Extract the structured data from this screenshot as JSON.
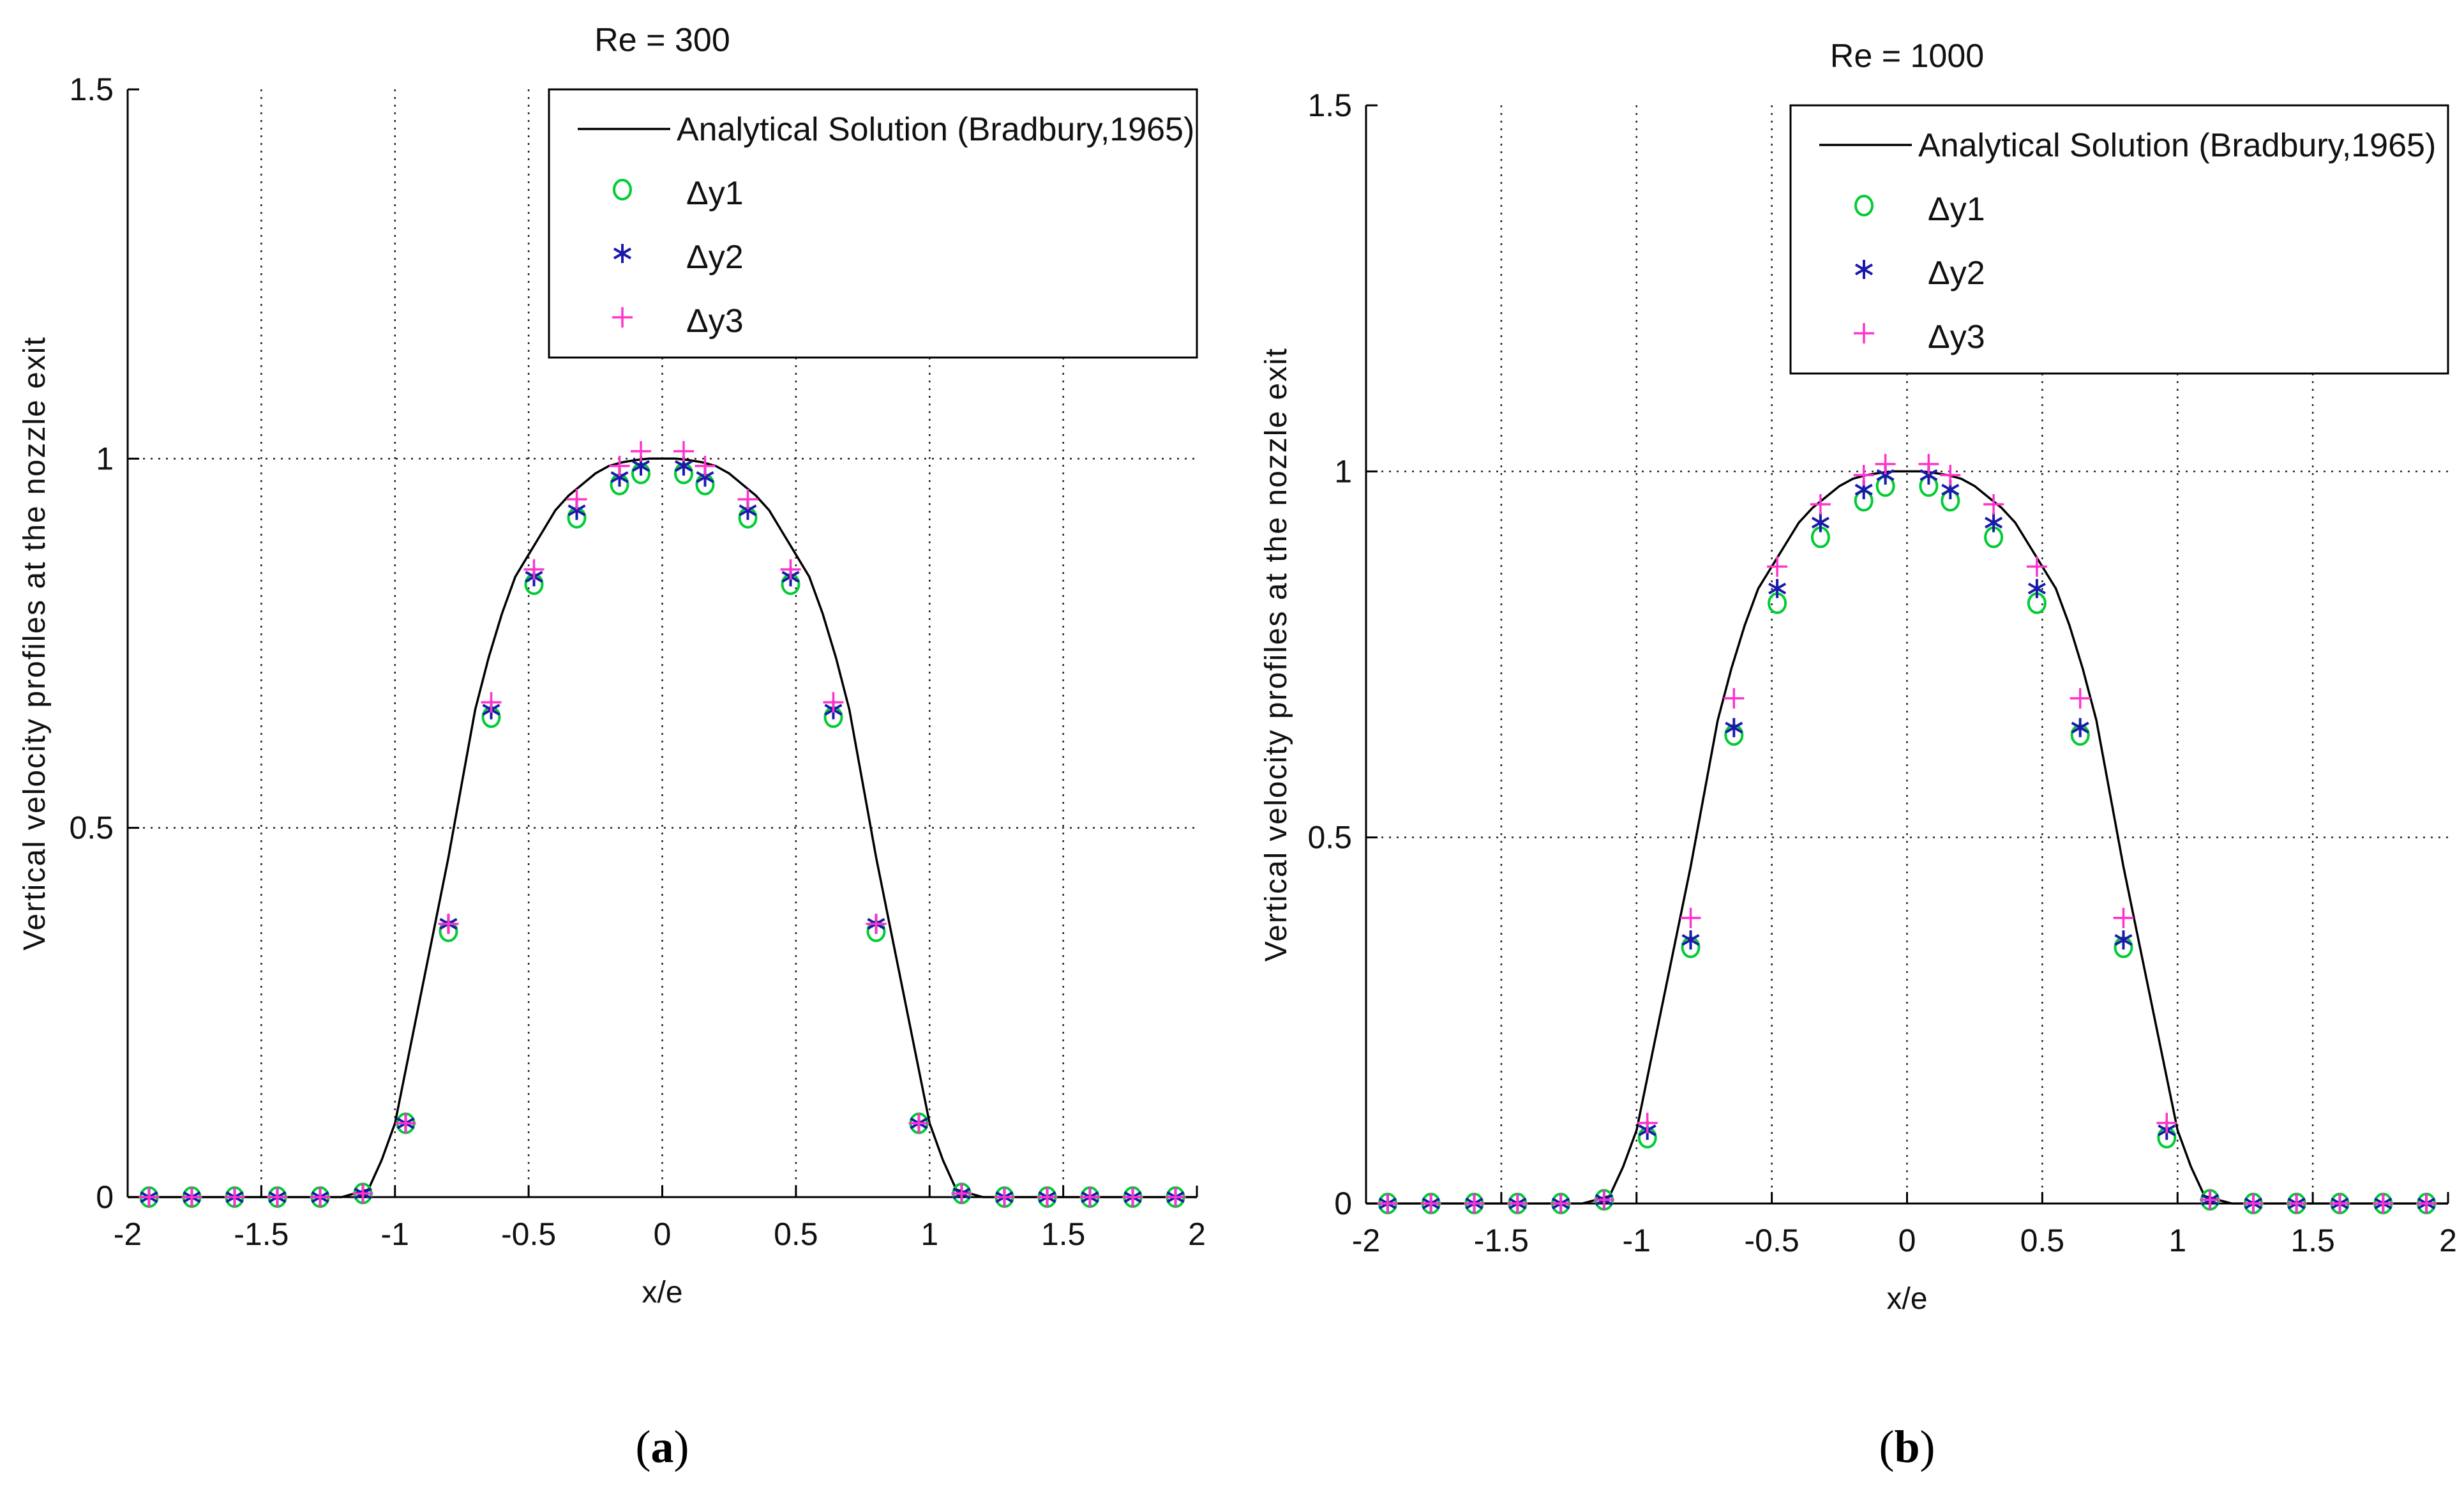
{
  "chart_data": [
    {
      "type": "line",
      "panel": "a",
      "panel_label_open": "(",
      "panel_label_letter": "a",
      "panel_label_close": ")",
      "title": "Re = 300",
      "xlabel": "x/e",
      "ylabel": "Vertical velocity profiles at the nozzle exit",
      "xlim": [
        -2,
        2
      ],
      "ylim": [
        0,
        1.5
      ],
      "xticks": [
        -2,
        -1.5,
        -1,
        -0.5,
        0,
        0.5,
        1,
        1.5,
        2
      ],
      "xtick_labels": [
        "-2",
        "-1.5",
        "-1",
        "-0.5",
        "0",
        "0.5",
        "1",
        "1.5",
        "2"
      ],
      "yticks": [
        0,
        0.5,
        1,
        1.5
      ],
      "ytick_labels": [
        "0",
        "0.5",
        "1",
        "1.5"
      ],
      "grid": true,
      "legend_position": "top-right",
      "line_series": {
        "name": "Analytical Solution (Bradbury,1965)",
        "color": "#000000",
        "x": [
          -2.0,
          -1.9,
          -1.8,
          -1.7,
          -1.6,
          -1.5,
          -1.4,
          -1.3,
          -1.2,
          -1.15,
          -1.1,
          -1.05,
          -1.0,
          -0.95,
          -0.9,
          -0.85,
          -0.8,
          -0.75,
          -0.7,
          -0.65,
          -0.6,
          -0.55,
          -0.5,
          -0.45,
          -0.4,
          -0.35,
          -0.3,
          -0.25,
          -0.2,
          -0.15,
          -0.1,
          -0.05,
          0.0,
          0.05,
          0.1,
          0.15,
          0.2,
          0.25,
          0.3,
          0.35,
          0.4,
          0.45,
          0.5,
          0.55,
          0.6,
          0.65,
          0.7,
          0.75,
          0.8,
          0.85,
          0.9,
          0.95,
          1.0,
          1.05,
          1.1,
          1.15,
          1.2,
          1.3,
          1.4,
          1.5,
          1.6,
          1.7,
          1.8,
          1.9,
          2.0
        ],
        "y": [
          0,
          0,
          0,
          0,
          0,
          0,
          0,
          0,
          0,
          0.005,
          0.01,
          0.05,
          0.1,
          0.19,
          0.28,
          0.37,
          0.46,
          0.56,
          0.66,
          0.73,
          0.79,
          0.84,
          0.87,
          0.9,
          0.93,
          0.95,
          0.965,
          0.98,
          0.99,
          0.995,
          0.998,
          1.0,
          1.0,
          1.0,
          0.998,
          0.995,
          0.99,
          0.98,
          0.965,
          0.95,
          0.93,
          0.9,
          0.87,
          0.84,
          0.79,
          0.73,
          0.66,
          0.56,
          0.46,
          0.37,
          0.28,
          0.19,
          0.1,
          0.05,
          0.01,
          0.005,
          0,
          0,
          0,
          0,
          0,
          0,
          0,
          0,
          0
        ]
      },
      "marker_series": [
        {
          "name": "Δy1",
          "marker": "circle",
          "color": "#00cc33",
          "x": [
            -1.92,
            -1.76,
            -1.6,
            -1.44,
            -1.28,
            -1.12,
            -0.96,
            -0.8,
            -0.64,
            -0.48,
            -0.32,
            -0.16,
            -0.08,
            0.08,
            0.16,
            0.32,
            0.48,
            0.64,
            0.8,
            0.96,
            1.12,
            1.28,
            1.44,
            1.6,
            1.76,
            1.92
          ],
          "y": [
            0,
            0,
            0,
            0,
            0,
            0.005,
            0.1,
            0.36,
            0.65,
            0.83,
            0.92,
            0.965,
            0.98,
            0.98,
            0.965,
            0.92,
            0.83,
            0.65,
            0.36,
            0.1,
            0.005,
            0,
            0,
            0,
            0,
            0
          ]
        },
        {
          "name": "Δy2",
          "marker": "asterisk",
          "color": "#1a1aaa",
          "x": [
            -1.92,
            -1.76,
            -1.6,
            -1.44,
            -1.28,
            -1.12,
            -0.96,
            -0.8,
            -0.64,
            -0.48,
            -0.32,
            -0.16,
            -0.08,
            0.08,
            0.16,
            0.32,
            0.48,
            0.64,
            0.8,
            0.96,
            1.12,
            1.28,
            1.44,
            1.6,
            1.76,
            1.92
          ],
          "y": [
            0,
            0,
            0,
            0,
            0,
            0.005,
            0.1,
            0.37,
            0.66,
            0.84,
            0.93,
            0.975,
            0.99,
            0.99,
            0.975,
            0.93,
            0.84,
            0.66,
            0.37,
            0.1,
            0.005,
            0,
            0,
            0,
            0,
            0
          ]
        },
        {
          "name": "Δy3",
          "marker": "plus",
          "color": "#ff33cc",
          "x": [
            -1.92,
            -1.76,
            -1.6,
            -1.44,
            -1.28,
            -1.12,
            -0.96,
            -0.8,
            -0.64,
            -0.48,
            -0.32,
            -0.16,
            -0.08,
            0.08,
            0.16,
            0.32,
            0.48,
            0.64,
            0.8,
            0.96,
            1.12,
            1.28,
            1.44,
            1.6,
            1.76,
            1.92
          ],
          "y": [
            0,
            0,
            0,
            0,
            0,
            0.005,
            0.1,
            0.37,
            0.67,
            0.85,
            0.945,
            0.99,
            1.01,
            1.01,
            0.99,
            0.945,
            0.85,
            0.67,
            0.37,
            0.1,
            0.005,
            0,
            0,
            0,
            0,
            0
          ]
        }
      ]
    },
    {
      "type": "line",
      "panel": "b",
      "panel_label_open": "(",
      "panel_label_letter": "b",
      "panel_label_close": ")",
      "title": "Re = 1000",
      "xlabel": "x/e",
      "ylabel": "Vertical velocity profiles at the nozzle exit",
      "xlim": [
        -2,
        2
      ],
      "ylim": [
        0,
        1.5
      ],
      "xticks": [
        -2,
        -1.5,
        -1,
        -0.5,
        0,
        0.5,
        1,
        1.5,
        2
      ],
      "xtick_labels": [
        "-2",
        "-1.5",
        "-1",
        "-0.5",
        "0",
        "0.5",
        "1",
        "1.5",
        "2"
      ],
      "yticks": [
        0,
        0.5,
        1,
        1.5
      ],
      "ytick_labels": [
        "0",
        "0.5",
        "1",
        "1.5"
      ],
      "grid": true,
      "legend_position": "top-right",
      "line_series": {
        "name": "Analytical Solution (Bradbury,1965)",
        "color": "#000000",
        "x": [
          -2.0,
          -1.9,
          -1.8,
          -1.7,
          -1.6,
          -1.5,
          -1.4,
          -1.3,
          -1.2,
          -1.15,
          -1.1,
          -1.05,
          -1.0,
          -0.95,
          -0.9,
          -0.85,
          -0.8,
          -0.75,
          -0.7,
          -0.65,
          -0.6,
          -0.55,
          -0.5,
          -0.45,
          -0.4,
          -0.35,
          -0.3,
          -0.25,
          -0.2,
          -0.15,
          -0.1,
          -0.05,
          0.0,
          0.05,
          0.1,
          0.15,
          0.2,
          0.25,
          0.3,
          0.35,
          0.4,
          0.45,
          0.5,
          0.55,
          0.6,
          0.65,
          0.7,
          0.75,
          0.8,
          0.85,
          0.9,
          0.95,
          1.0,
          1.05,
          1.1,
          1.15,
          1.2,
          1.3,
          1.4,
          1.5,
          1.6,
          1.7,
          1.8,
          1.9,
          2.0
        ],
        "y": [
          0,
          0,
          0,
          0,
          0,
          0,
          0,
          0,
          0,
          0.005,
          0.01,
          0.05,
          0.1,
          0.19,
          0.28,
          0.37,
          0.46,
          0.56,
          0.66,
          0.73,
          0.79,
          0.84,
          0.87,
          0.9,
          0.93,
          0.95,
          0.965,
          0.98,
          0.99,
          0.995,
          0.998,
          1.0,
          1.0,
          1.0,
          0.998,
          0.995,
          0.99,
          0.98,
          0.965,
          0.95,
          0.93,
          0.9,
          0.87,
          0.84,
          0.79,
          0.73,
          0.66,
          0.56,
          0.46,
          0.37,
          0.28,
          0.19,
          0.1,
          0.05,
          0.01,
          0.005,
          0,
          0,
          0,
          0,
          0,
          0,
          0,
          0,
          0
        ]
      },
      "marker_series": [
        {
          "name": "Δy1",
          "marker": "circle",
          "color": "#00cc33",
          "x": [
            -1.92,
            -1.76,
            -1.6,
            -1.44,
            -1.28,
            -1.12,
            -0.96,
            -0.8,
            -0.64,
            -0.48,
            -0.32,
            -0.16,
            -0.08,
            0.08,
            0.16,
            0.32,
            0.48,
            0.64,
            0.8,
            0.96,
            1.12,
            1.28,
            1.44,
            1.6,
            1.76,
            1.92
          ],
          "y": [
            0,
            0,
            0,
            0,
            0,
            0.005,
            0.09,
            0.35,
            0.64,
            0.82,
            0.91,
            0.96,
            0.98,
            0.98,
            0.96,
            0.91,
            0.82,
            0.64,
            0.35,
            0.09,
            0.005,
            0,
            0,
            0,
            0,
            0
          ]
        },
        {
          "name": "Δy2",
          "marker": "asterisk",
          "color": "#1a1aaa",
          "x": [
            -1.92,
            -1.76,
            -1.6,
            -1.44,
            -1.28,
            -1.12,
            -0.96,
            -0.8,
            -0.64,
            -0.48,
            -0.32,
            -0.16,
            -0.08,
            0.08,
            0.16,
            0.32,
            0.48,
            0.64,
            0.8,
            0.96,
            1.12,
            1.28,
            1.44,
            1.6,
            1.76,
            1.92
          ],
          "y": [
            0,
            0,
            0,
            0,
            0,
            0.005,
            0.1,
            0.36,
            0.65,
            0.84,
            0.93,
            0.975,
            0.995,
            0.995,
            0.975,
            0.93,
            0.84,
            0.65,
            0.36,
            0.1,
            0.005,
            0,
            0,
            0,
            0,
            0
          ]
        },
        {
          "name": "Δy3",
          "marker": "plus",
          "color": "#ff33cc",
          "x": [
            -1.92,
            -1.76,
            -1.6,
            -1.44,
            -1.28,
            -1.12,
            -0.96,
            -0.8,
            -0.64,
            -0.48,
            -0.32,
            -0.16,
            -0.08,
            0.08,
            0.16,
            0.32,
            0.48,
            0.64,
            0.8,
            0.96,
            1.12,
            1.28,
            1.44,
            1.6,
            1.76,
            1.92
          ],
          "y": [
            0,
            0,
            0,
            0,
            0,
            0.005,
            0.11,
            0.39,
            0.69,
            0.87,
            0.955,
            0.995,
            1.01,
            1.01,
            0.995,
            0.955,
            0.87,
            0.69,
            0.39,
            0.11,
            0.005,
            0,
            0,
            0,
            0,
            0
          ]
        }
      ]
    }
  ]
}
